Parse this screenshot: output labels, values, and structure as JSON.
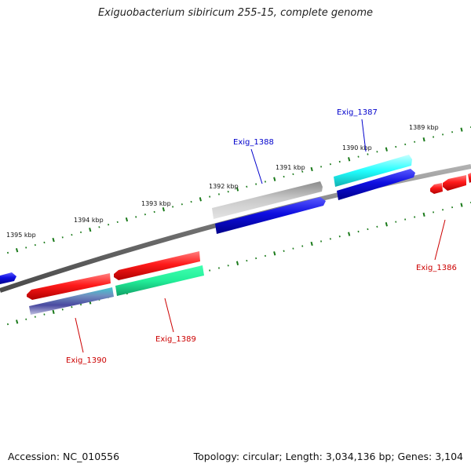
{
  "title": "Exiguobacterium sibiricum 255-15, complete genome",
  "footer": {
    "accession": "Accession: NC_010556",
    "info": "Topology: circular; Length: 3,034,136 bp; Genes: 3,104"
  },
  "scale_labels": [
    "1395 kbp",
    "1394 kbp",
    "1393 kbp",
    "1392 kbp",
    "1391 kbp",
    "1390 kbp",
    "1389 kbp"
  ],
  "gene_labels": {
    "exig_1386": "Exig_1386",
    "exig_1387": "Exig_1387",
    "exig_1388": "Exig_1388",
    "exig_1389": "Exig_1389",
    "exig_1390": "Exig_1390"
  },
  "colors": {
    "label_blue": "#0000cc",
    "label_red": "#cc0000",
    "backbone": "#808080",
    "tick": "#1a7a1a",
    "gene_red": "#ff1a1a",
    "gene_blue": "#1010e0",
    "gene_cyan": "#22ffff",
    "gene_grey": "#b8b8b8",
    "gene_green": "#22ee99",
    "gene_slate": "#5566bb"
  }
}
